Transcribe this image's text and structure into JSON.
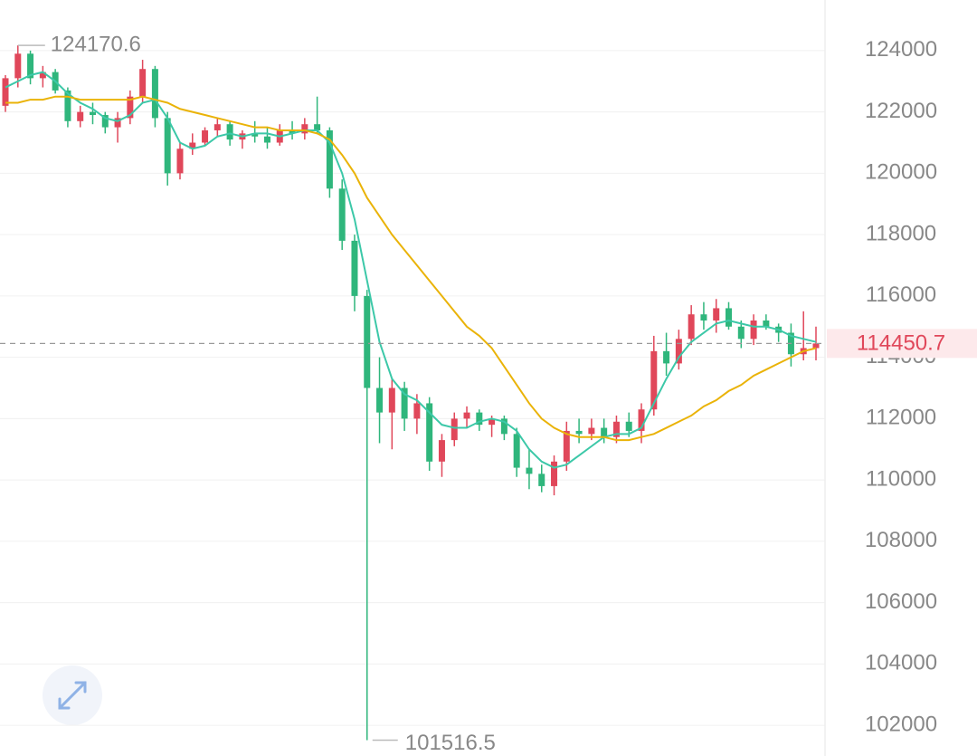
{
  "chart_data": {
    "type": "candlestick",
    "ylim": [
      101000,
      125650
    ],
    "yticks": [
      102000,
      104000,
      106000,
      108000,
      110000,
      112000,
      114000,
      116000,
      118000,
      120000,
      122000,
      124000
    ],
    "grid": true,
    "up_color": "#e0475a",
    "down_color": "#2fb67c",
    "high_index": 1,
    "low_index": 29,
    "candles": [
      [
        122200,
        123200,
        122000,
        123100
      ],
      [
        123100,
        124170.6,
        122800,
        123900
      ],
      [
        123900,
        124000,
        122900,
        123100
      ],
      [
        123100,
        123500,
        122800,
        123300
      ],
      [
        123300,
        123400,
        122600,
        122700
      ],
      [
        122700,
        122800,
        121500,
        121700
      ],
      [
        121700,
        122200,
        121500,
        122000
      ],
      [
        122000,
        122300,
        121600,
        121900
      ],
      [
        121900,
        122000,
        121300,
        121500
      ],
      [
        121500,
        122000,
        121000,
        121800
      ],
      [
        121800,
        122700,
        121600,
        122500
      ],
      [
        122500,
        123700,
        122300,
        123400
      ],
      [
        123400,
        123500,
        121500,
        121800
      ],
      [
        121800,
        122000,
        119600,
        120000
      ],
      [
        120000,
        121000,
        119800,
        120800
      ],
      [
        120800,
        121300,
        120600,
        121000
      ],
      [
        121000,
        121500,
        120900,
        121400
      ],
      [
        121400,
        121800,
        121200,
        121600
      ],
      [
        121600,
        121700,
        120900,
        121100
      ],
      [
        121100,
        121400,
        120800,
        121300
      ],
      [
        121300,
        121700,
        121000,
        121200
      ],
      [
        121200,
        121500,
        120800,
        121000
      ],
      [
        121000,
        121600,
        120900,
        121400
      ],
      [
        121400,
        121700,
        121100,
        121300
      ],
      [
        121300,
        121800,
        121100,
        121600
      ],
      [
        121600,
        122500,
        121300,
        121400
      ],
      [
        121400,
        121500,
        119200,
        119500
      ],
      [
        119500,
        119800,
        117500,
        117800
      ],
      [
        117800,
        118000,
        115500,
        116000
      ],
      [
        116000,
        116200,
        101516.5,
        113000
      ],
      [
        113000,
        114000,
        111200,
        112200
      ],
      [
        112200,
        113300,
        111000,
        113000
      ],
      [
        113000,
        113200,
        111600,
        112000
      ],
      [
        112000,
        112800,
        111500,
        112500
      ],
      [
        112500,
        112700,
        110300,
        110600
      ],
      [
        110600,
        111500,
        110100,
        111300
      ],
      [
        111300,
        112200,
        111100,
        112000
      ],
      [
        112000,
        112400,
        111700,
        112200
      ],
      [
        112200,
        112300,
        111600,
        111800
      ],
      [
        111800,
        112100,
        111400,
        112000
      ],
      [
        112000,
        112100,
        111300,
        111500
      ],
      [
        111500,
        111700,
        110100,
        110400
      ],
      [
        110400,
        111000,
        109700,
        110200
      ],
      [
        110200,
        110500,
        109600,
        109800
      ],
      [
        109800,
        110800,
        109500,
        110600
      ],
      [
        110600,
        111900,
        110300,
        111600
      ],
      [
        111600,
        112000,
        111200,
        111500
      ],
      [
        111500,
        112000,
        111300,
        111700
      ],
      [
        111700,
        112000,
        111200,
        111400
      ],
      [
        111400,
        112100,
        111200,
        111900
      ],
      [
        111900,
        112200,
        111400,
        111600
      ],
      [
        111600,
        112500,
        111200,
        112300
      ],
      [
        112300,
        114700,
        112100,
        114200
      ],
      [
        114200,
        114800,
        113400,
        113800
      ],
      [
        113800,
        114900,
        113600,
        114600
      ],
      [
        114600,
        115700,
        114400,
        115400
      ],
      [
        115400,
        115800,
        114900,
        115200
      ],
      [
        115200,
        115900,
        114800,
        115600
      ],
      [
        115600,
        115800,
        114900,
        115000
      ],
      [
        115000,
        115200,
        114300,
        114600
      ],
      [
        114600,
        115400,
        114400,
        115200
      ],
      [
        115200,
        115400,
        114900,
        115000
      ],
      [
        115000,
        115100,
        114500,
        114800
      ],
      [
        114800,
        115100,
        113700,
        114100
      ],
      [
        114100,
        115500,
        113900,
        114300
      ],
      [
        114300,
        115000,
        113900,
        114450.7
      ]
    ],
    "series": [
      {
        "color": "#3cc8a8",
        "values": [
          122800,
          123000,
          123200,
          123300,
          123000,
          122600,
          122300,
          122100,
          121800,
          121700,
          121900,
          122300,
          122400,
          121800,
          121000,
          120800,
          120900,
          121200,
          121300,
          121200,
          121300,
          121300,
          121200,
          121300,
          121400,
          121400,
          121000,
          120000,
          118500,
          116500,
          114500,
          113300,
          112800,
          112600,
          112200,
          111800,
          111700,
          111700,
          111900,
          112000,
          111900,
          111600,
          111000,
          110600,
          110400,
          110500,
          110800,
          111100,
          111400,
          111500,
          111500,
          111700,
          112500,
          113300,
          114000,
          114500,
          114800,
          115100,
          115200,
          115100,
          115000,
          115000,
          114900,
          114700,
          114600,
          114500
        ]
      },
      {
        "color": "#eab308",
        "values": [
          122300,
          122300,
          122400,
          122400,
          122500,
          122500,
          122400,
          122400,
          122400,
          122400,
          122400,
          122500,
          122400,
          122300,
          122100,
          122000,
          121900,
          121800,
          121700,
          121600,
          121500,
          121500,
          121400,
          121400,
          121400,
          121300,
          121100,
          120600,
          120000,
          119200,
          118600,
          118000,
          117500,
          117000,
          116500,
          116000,
          115500,
          115000,
          114700,
          114300,
          113700,
          113100,
          112500,
          112000,
          111700,
          111500,
          111400,
          111400,
          111400,
          111300,
          111300,
          111400,
          111500,
          111700,
          111900,
          112100,
          112400,
          112600,
          112900,
          113100,
          113400,
          113600,
          113800,
          114000,
          114200,
          114300
        ]
      }
    ]
  }
}
